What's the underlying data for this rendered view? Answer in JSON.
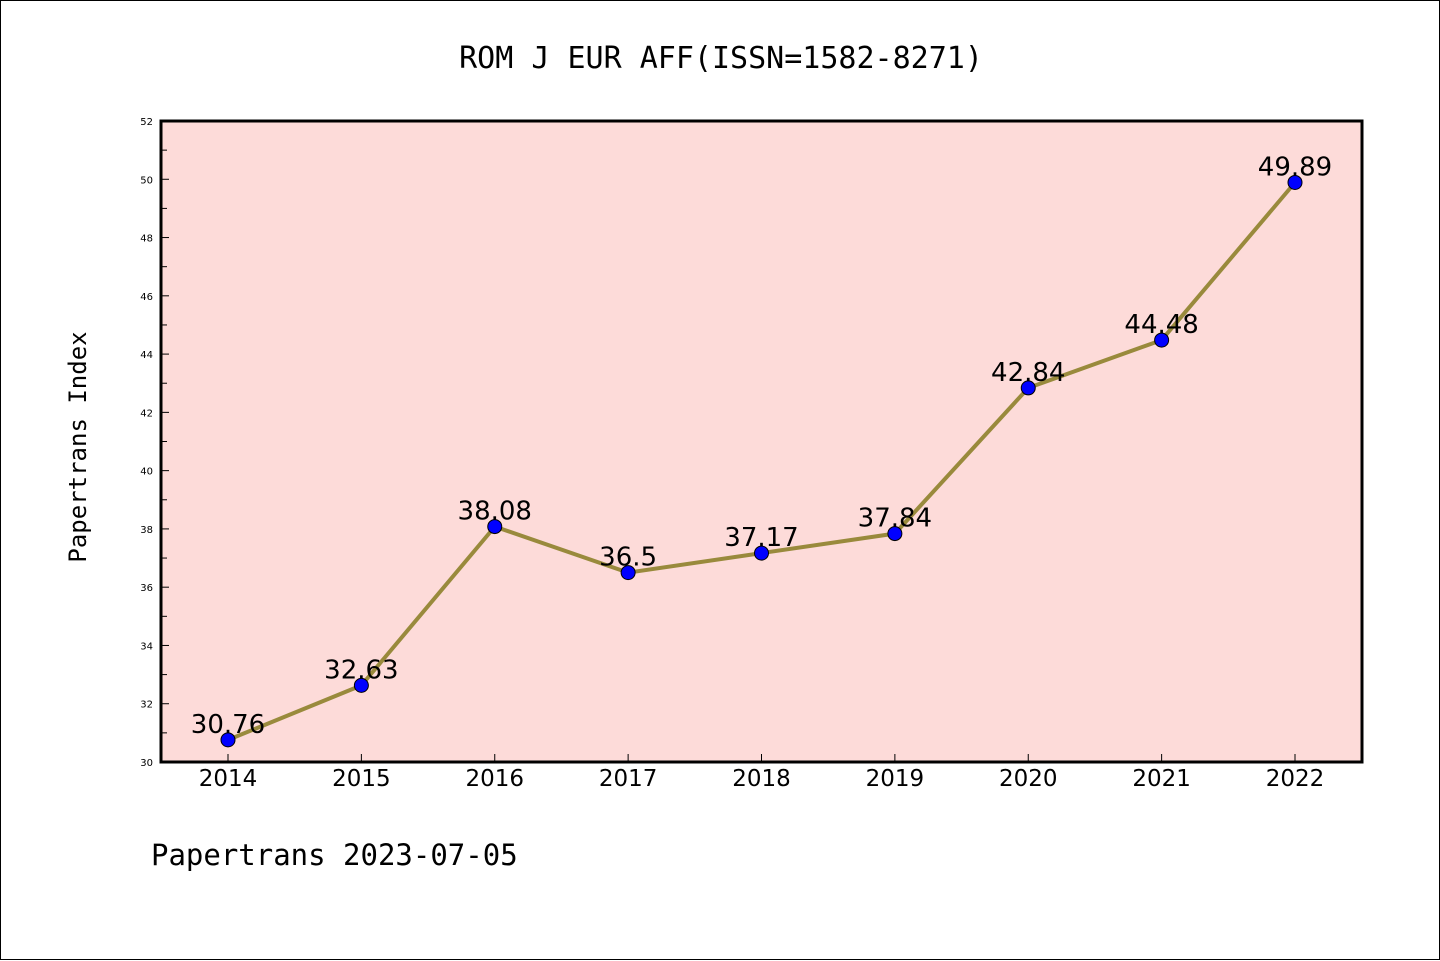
{
  "chart_data": {
    "type": "line",
    "title": "ROM J EUR AFF(ISSN=1582-8271)",
    "ylabel": "Papertrans Index",
    "xlabel": "",
    "categories": [
      "2014",
      "2015",
      "2016",
      "2017",
      "2018",
      "2019",
      "2020",
      "2021",
      "2022"
    ],
    "series": [
      {
        "values": [
          30.76,
          32.63,
          38.08,
          36.5,
          37.17,
          37.84,
          42.84,
          44.48,
          49.89
        ],
        "labels": [
          "30.76",
          "32.63",
          "38.08",
          "36.5",
          "37.17",
          "37.84",
          "42.84",
          "44.48",
          "49.89"
        ]
      }
    ],
    "ylim": [
      30,
      52
    ],
    "yticks": [
      "30",
      "32",
      "34",
      "36",
      "38",
      "40",
      "42",
      "44",
      "46",
      "48",
      "50",
      "52"
    ],
    "grid": false,
    "colors": {
      "plot_background": "#fddbd9",
      "line": "#998a3c",
      "marker": "#0000ff",
      "axes": "#000000"
    }
  },
  "footer": "Papertrans 2023-07-05"
}
